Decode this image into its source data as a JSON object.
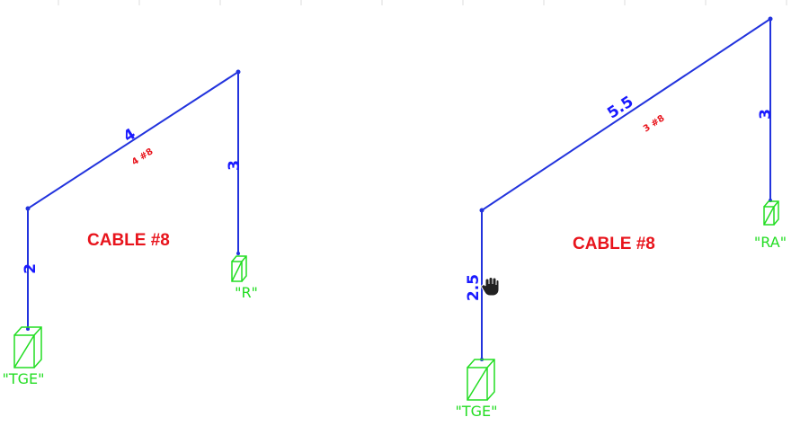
{
  "colors": {
    "wire": "#2233dd",
    "dimension": "#1a1aff",
    "annotation_red": "#e8141c",
    "box_green": "#22dd22",
    "grid_tick": "#dddddd",
    "cursor": "#222222"
  },
  "left_run": {
    "segments": {
      "vertical_drop": "2",
      "diagonal": "4",
      "right_drop": "3"
    },
    "conductor_note": "4 #8",
    "cable_label": "CABLE #8",
    "start_box": "\"TGE\"",
    "end_box": "\"R\""
  },
  "right_run": {
    "segments": {
      "vertical_drop": "2.5",
      "diagonal": "5.5",
      "right_drop": "3"
    },
    "conductor_note": "3 #8",
    "cable_label": "CABLE #8",
    "start_box": "\"TGE\"",
    "end_box": "\"RA\""
  },
  "cursor_icon": "hand-cursor-icon"
}
